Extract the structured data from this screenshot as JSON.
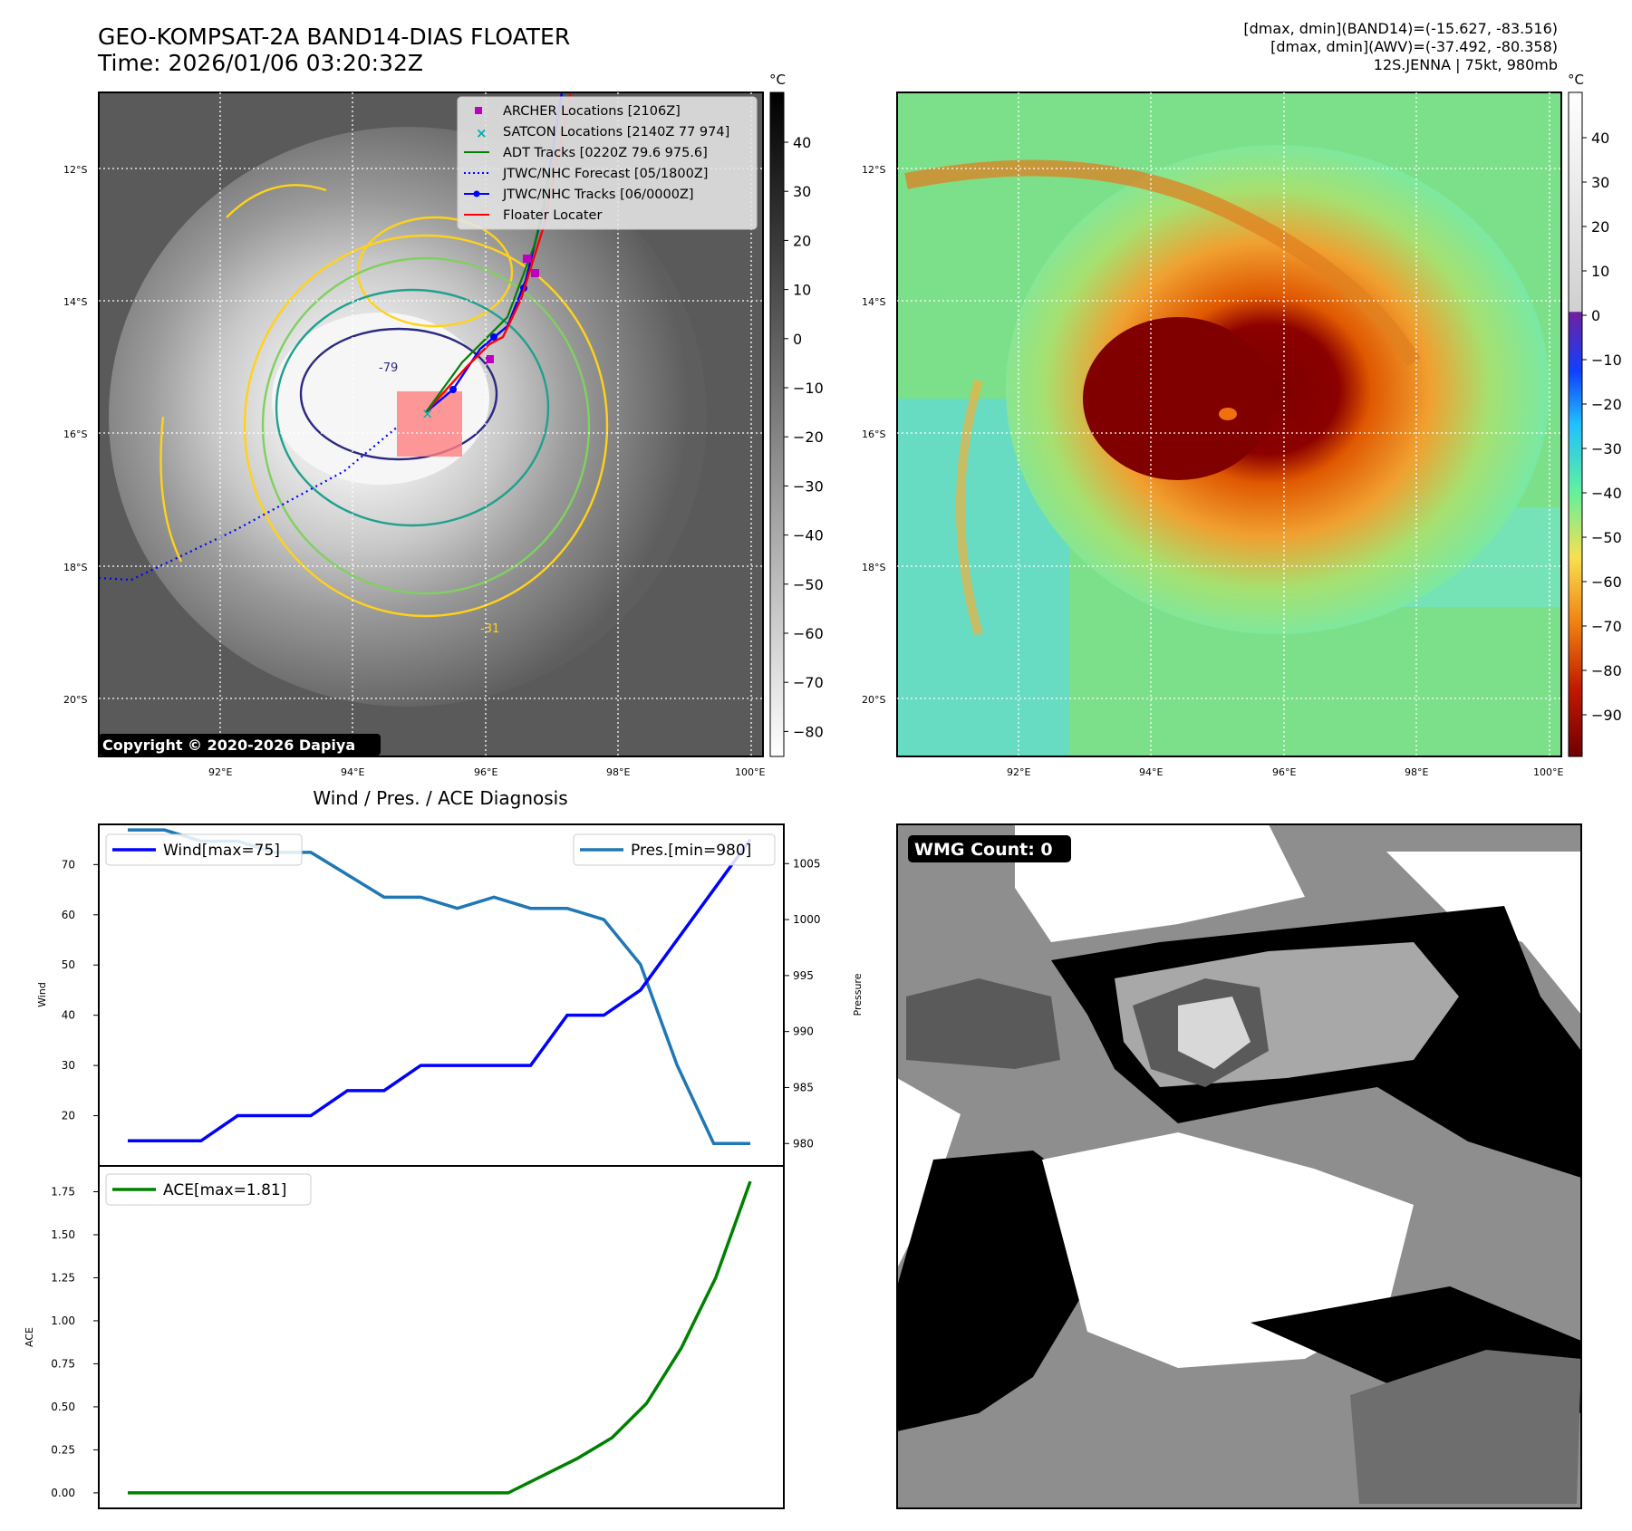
{
  "header": {
    "title_line1": "GEO-KOMPSAT-2A BAND14-DIAS FLOATER",
    "title_line2": "Time: 2026/01/06 03:20:32Z",
    "info_line1": "[dmax, dmin](BAND14)=(-15.627, -83.516)",
    "info_line2": "[dmax, dmin](AWV)=(-37.492, -80.358)",
    "info_line3": "12S.JENNA | 75kt, 980mb"
  },
  "ir_panel": {
    "lat_labels": [
      "12°S",
      "14°S",
      "16°S",
      "18°S",
      "20°S"
    ],
    "lon_labels": [
      "92°E",
      "94°E",
      "96°E",
      "98°E",
      "100°E"
    ],
    "copyright": "Copyright © 2020-2026 Dapiya",
    "contour_labels": [
      "-79",
      "-31"
    ],
    "legend": [
      {
        "label": "ARCHER Locations [2106Z]",
        "color": "#c000c0",
        "kind": "square"
      },
      {
        "label": "SATCON Locations [2140Z 77 974]",
        "color": "#00b0b0",
        "kind": "x"
      },
      {
        "label": "ADT Tracks [0220Z 79.6 975.6]",
        "color": "#008000",
        "kind": "line"
      },
      {
        "label": "JTWC/NHC Forecast [05/1800Z]",
        "color": "#0000ff",
        "kind": "dotted"
      },
      {
        "label": "JTWC/NHC Tracks [06/0000Z]",
        "color": "#0000ff",
        "kind": "line-dot"
      },
      {
        "label": "Floater Locater",
        "color": "#ff0000",
        "kind": "line"
      }
    ],
    "colorbar_unit": "°C",
    "colorbar_ticks": [
      "40",
      "30",
      "20",
      "10",
      "0",
      "−10",
      "−20",
      "−30",
      "−40",
      "−50",
      "−60",
      "−70",
      "−80"
    ]
  },
  "awv_panel": {
    "lat_labels": [
      "12°S",
      "14°S",
      "16°S",
      "18°S",
      "20°S"
    ],
    "lon_labels": [
      "92°E",
      "94°E",
      "96°E",
      "98°E",
      "100°E"
    ],
    "colorbar_unit": "°C",
    "colorbar_ticks": [
      "40",
      "30",
      "20",
      "10",
      "0",
      "−10",
      "−20",
      "−30",
      "−40",
      "−50",
      "−60",
      "−70",
      "−80",
      "−90"
    ]
  },
  "wmg_panel": {
    "label": "WMG Count: 0"
  },
  "colors": {
    "wind": "#0000ff",
    "pressure": "#1f77b4",
    "ace": "#008000"
  },
  "chart_data": [
    {
      "type": "line",
      "title": "Wind / Pres. / ACE Diagnosis",
      "x": [
        0,
        1,
        2,
        3,
        4,
        5,
        6,
        7,
        8,
        9,
        10,
        11,
        12,
        13,
        14,
        15,
        16,
        17
      ],
      "series": [
        {
          "name": "Wind[max=75]",
          "axis": "left",
          "values": [
            15,
            15,
            15,
            20,
            20,
            20,
            25,
            25,
            30,
            30,
            30,
            30,
            40,
            40,
            45,
            55,
            65,
            75
          ]
        },
        {
          "name": "Pres.[min=980]",
          "axis": "right",
          "values": [
            1008,
            1008,
            1007,
            1007,
            1006,
            1006,
            1004,
            1002,
            1002,
            1001,
            1002,
            1001,
            1001,
            1000,
            996,
            987,
            980,
            980
          ]
        }
      ],
      "ylabel_left": "Wind",
      "ylabel_right": "Pressure",
      "ylim_left": [
        10,
        78
      ],
      "ylim_right": [
        978,
        1008.5
      ],
      "yticks_left": [
        20,
        30,
        40,
        50,
        60,
        70
      ],
      "yticks_right": [
        980,
        985,
        990,
        995,
        1000,
        1005
      ]
    },
    {
      "type": "line",
      "series": [
        {
          "name": "ACE[max=1.81]",
          "values": [
            0,
            0,
            0,
            0,
            0,
            0,
            0,
            0,
            0,
            0,
            0,
            0,
            0.1,
            0.2,
            0.32,
            0.52,
            0.84,
            1.25,
            1.81
          ]
        }
      ],
      "ylabel": "ACE",
      "ylim": [
        -0.09,
        1.9
      ],
      "yticks": [
        0.0,
        0.25,
        0.5,
        0.75,
        1.0,
        1.25,
        1.5,
        1.75
      ],
      "ytick_labels": [
        "0.00",
        "0.25",
        "0.50",
        "0.75",
        "1.00",
        "1.25",
        "1.50",
        "1.75"
      ]
    }
  ]
}
